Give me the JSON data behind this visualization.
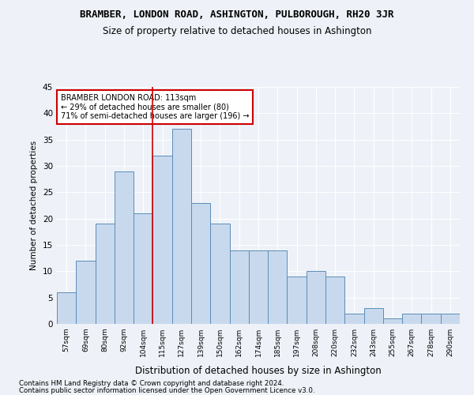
{
  "title": "BRAMBER, LONDON ROAD, ASHINGTON, PULBOROUGH, RH20 3JR",
  "subtitle": "Size of property relative to detached houses in Ashington",
  "xlabel": "Distribution of detached houses by size in Ashington",
  "ylabel": "Number of detached properties",
  "bin_labels": [
    "57sqm",
    "69sqm",
    "80sqm",
    "92sqm",
    "104sqm",
    "115sqm",
    "127sqm",
    "139sqm",
    "150sqm",
    "162sqm",
    "174sqm",
    "185sqm",
    "197sqm",
    "208sqm",
    "220sqm",
    "232sqm",
    "243sqm",
    "255sqm",
    "267sqm",
    "278sqm",
    "290sqm"
  ],
  "bar_heights": [
    6,
    12,
    19,
    29,
    21,
    32,
    37,
    23,
    19,
    14,
    14,
    14,
    9,
    10,
    9,
    2,
    3,
    1,
    2,
    2,
    2
  ],
  "bar_color": "#c9d9ed",
  "bar_edge_color": "#5b8db8",
  "vline_x": 4.5,
  "vline_color": "#cc0000",
  "annotation_text": "BRAMBER LONDON ROAD: 113sqm\n← 29% of detached houses are smaller (80)\n71% of semi-detached houses are larger (196) →",
  "annotation_box_color": "#ffffff",
  "annotation_box_edge": "#cc0000",
  "ylim": [
    0,
    45
  ],
  "yticks": [
    0,
    5,
    10,
    15,
    20,
    25,
    30,
    35,
    40,
    45
  ],
  "footer1": "Contains HM Land Registry data © Crown copyright and database right 2024.",
  "footer2": "Contains public sector information licensed under the Open Government Licence v3.0.",
  "bg_color": "#eef2f8",
  "plot_bg_color": "#eef2f8"
}
